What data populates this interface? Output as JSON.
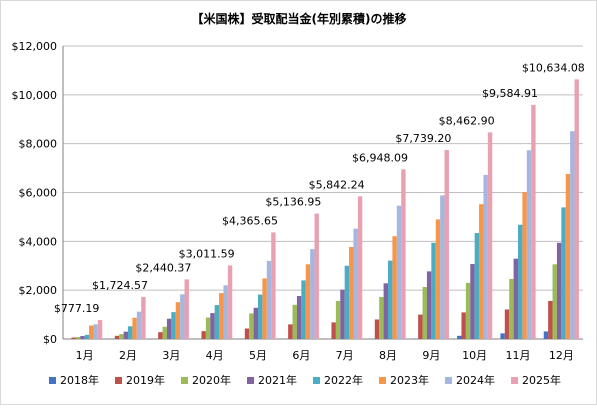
{
  "chart_data": {
    "type": "bar",
    "title": "【米国株】受取配当金(年別累積)の推移",
    "xlabel": "",
    "ylabel": "",
    "ylim": [
      0,
      12000
    ],
    "yticks": [
      0,
      2000,
      4000,
      6000,
      8000,
      10000,
      12000
    ],
    "ytick_labels": [
      "$0",
      "$2,000",
      "$4,000",
      "$6,000",
      "$8,000",
      "$10,000",
      "$12,000"
    ],
    "grid": "horizontal",
    "legend_position": "bottom",
    "categories": [
      "1月",
      "2月",
      "3月",
      "4月",
      "5月",
      "6月",
      "7月",
      "8月",
      "9月",
      "10月",
      "11月",
      "12月"
    ],
    "series": [
      {
        "name": "2018年",
        "color": "#4472c4",
        "values": [
          0,
          0,
          0,
          0,
          0,
          0,
          0,
          0,
          20,
          130,
          230,
          310
        ]
      },
      {
        "name": "2019年",
        "color": "#c0504d",
        "values": [
          60,
          130,
          280,
          320,
          430,
          600,
          680,
          800,
          1000,
          1090,
          1210,
          1560
        ]
      },
      {
        "name": "2020年",
        "color": "#9bbb59",
        "values": [
          80,
          200,
          500,
          880,
          1050,
          1400,
          1560,
          1720,
          2130,
          2300,
          2460,
          3060
        ]
      },
      {
        "name": "2021年",
        "color": "#8064a2",
        "values": [
          120,
          300,
          830,
          1060,
          1280,
          1760,
          2020,
          2280,
          2770,
          3070,
          3290,
          3940
        ]
      },
      {
        "name": "2022年",
        "color": "#4bacc6",
        "values": [
          170,
          520,
          1100,
          1390,
          1820,
          2400,
          3000,
          3210,
          3940,
          4340,
          4680,
          5390
        ]
      },
      {
        "name": "2023年",
        "color": "#f79646",
        "values": [
          550,
          870,
          1510,
          1880,
          2480,
          3060,
          3770,
          4210,
          4900,
          5520,
          6020,
          6760
        ]
      },
      {
        "name": "2024年",
        "color": "#a5b6e0",
        "values": [
          600,
          1120,
          1830,
          2200,
          3200,
          3680,
          4520,
          5460,
          5880,
          6720,
          7730,
          8510
        ]
      },
      {
        "name": "2025年",
        "color": "#e8a1b0",
        "values": [
          777.19,
          1724.57,
          2440.37,
          3011.59,
          4365.65,
          5136.95,
          5842.24,
          6948.09,
          7739.2,
          8462.9,
          9584.91,
          10634.08
        ]
      }
    ],
    "data_labels": [
      "$777.19",
      "$1,724.57",
      "$2,440.37",
      "$3,011.59",
      "$4,365.65",
      "$5,136.95",
      "$5,842.24",
      "$6,948.09",
      "$7,739.20",
      "$8,462.90",
      "$9,584.91",
      "$10,634.08"
    ]
  }
}
